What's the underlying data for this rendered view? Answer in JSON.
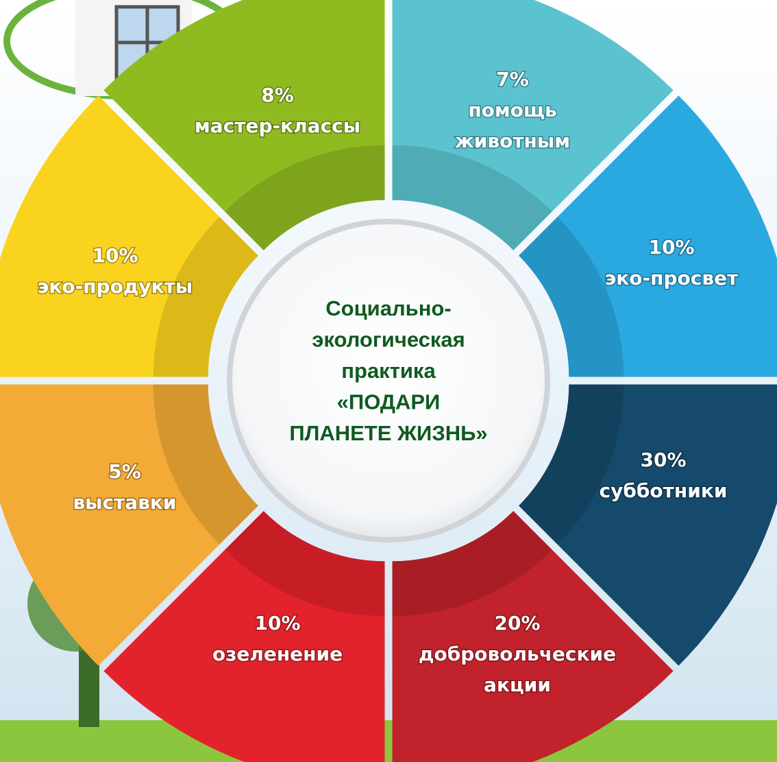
{
  "center": {
    "lines": [
      "Социально-",
      "экологическая",
      "практика",
      "«ПОДАРИ",
      "ПЛАНЕТЕ ЖИЗНЬ»"
    ]
  },
  "segments": [
    {
      "percent": "7%",
      "label": [
        "помощь",
        "животным"
      ]
    },
    {
      "percent": "10%",
      "label": [
        "эко-просвет"
      ]
    },
    {
      "percent": "30%",
      "label": [
        "субботники"
      ]
    },
    {
      "percent": "20%",
      "label": [
        "добровольческие",
        "акции"
      ]
    },
    {
      "percent": "10%",
      "label": [
        "озеленение"
      ]
    },
    {
      "percent": "5%",
      "label": [
        "выставки"
      ]
    },
    {
      "percent": "10%",
      "label": [
        "эко-продукты"
      ]
    },
    {
      "percent": "8%",
      "label": [
        "мастер-классы"
      ]
    }
  ]
}
